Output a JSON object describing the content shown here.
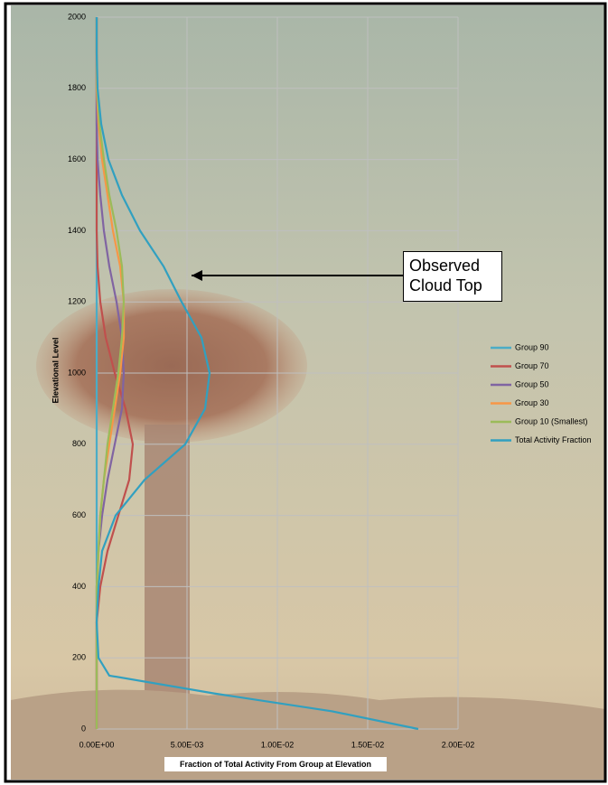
{
  "chart_data": {
    "type": "line",
    "x_label": "Fraction of Total Activity From Group at Elevation",
    "y_label": "Elevational Level",
    "annotation": "Observed Cloud Top",
    "y": [
      0,
      50,
      100,
      150,
      200,
      300,
      400,
      500,
      600,
      700,
      800,
      900,
      1000,
      1100,
      1200,
      1300,
      1400,
      1500,
      1600,
      1700,
      1800,
      1900,
      2000
    ],
    "series": [
      {
        "name": "Group 90",
        "color": "#4bacc6",
        "values": [
          0,
          0,
          0,
          0,
          0,
          0,
          0,
          0,
          0,
          0,
          0,
          0,
          0,
          0,
          0,
          0,
          0,
          0,
          0,
          0,
          0,
          0,
          0
        ]
      },
      {
        "name": "Group 70",
        "color": "#c0504d",
        "values": [
          0,
          0,
          0,
          0,
          0,
          0,
          0.0002,
          0.0006,
          0.0012,
          0.0018,
          0.002,
          0.0016,
          0.001,
          0.0005,
          0.0002,
          5e-05,
          0,
          0,
          0,
          0,
          0,
          0,
          0
        ]
      },
      {
        "name": "Group 50",
        "color": "#8064a2",
        "values": [
          0,
          0,
          0,
          0,
          0,
          0,
          0,
          0.0001,
          0.0003,
          0.0006,
          0.001,
          0.0014,
          0.0015,
          0.0014,
          0.0011,
          0.0007,
          0.0004,
          0.0002,
          5e-05,
          0,
          0,
          0,
          0
        ]
      },
      {
        "name": "Group 30",
        "color": "#f79646",
        "values": [
          0,
          0,
          0,
          0,
          0,
          0,
          3e-05,
          0.0001,
          0.0002,
          0.0004,
          0.0007,
          0.001,
          0.0013,
          0.0015,
          0.0015,
          0.0013,
          0.0009,
          0.0006,
          0.0003,
          0.0001,
          0,
          0,
          0
        ]
      },
      {
        "name": "Group 10 (Smallest)",
        "color": "#9bbb59",
        "values": [
          0,
          0,
          0,
          0,
          0,
          0,
          0,
          0.0001,
          0.0002,
          0.0004,
          0.0006,
          0.0009,
          0.0012,
          0.0014,
          0.0015,
          0.0014,
          0.0011,
          0.0007,
          0.0004,
          0.00015,
          3e-05,
          0,
          0
        ]
      },
      {
        "name": "Total Activity Fraction",
        "color": "#31a0c0",
        "values": [
          0.0178,
          0.013,
          0.0065,
          0.0007,
          0.0001,
          0,
          0.0001,
          0.0003,
          0.00105,
          0.00265,
          0.0049,
          0.006,
          0.00625,
          0.0058,
          0.0047,
          0.0037,
          0.0024,
          0.0014,
          0.00065,
          0.00025,
          5e-05,
          0,
          0
        ]
      }
    ],
    "xlim": [
      0,
      0.02
    ],
    "xticks": [
      {
        "value": 0,
        "label": "0.00E+00"
      },
      {
        "value": 0.005,
        "label": "5.00E-03"
      },
      {
        "value": 0.01,
        "label": "1.00E-02"
      },
      {
        "value": 0.015,
        "label": "1.50E-02"
      },
      {
        "value": 0.02,
        "label": "2.00E-02"
      }
    ],
    "ylim": [
      0,
      2000
    ],
    "yticks": [
      0,
      200,
      400,
      600,
      800,
      1000,
      1200,
      1400,
      1600,
      1800,
      2000
    ],
    "grid": true,
    "legend": "right"
  }
}
